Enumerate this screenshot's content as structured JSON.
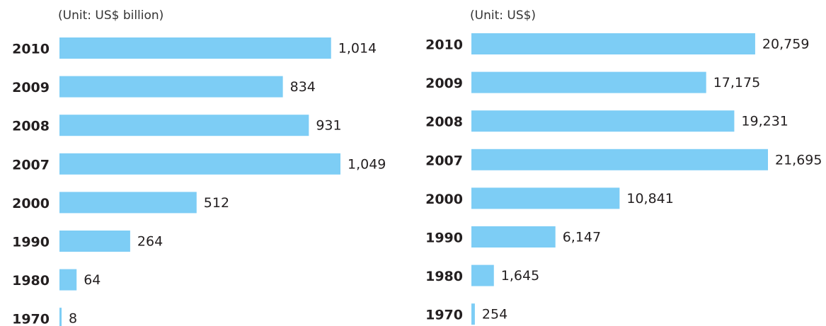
{
  "chart_data": [
    {
      "type": "bar",
      "orientation": "horizontal",
      "subtitle": "(Unit: US$ billion)",
      "color": "#7dcdf5",
      "categories": [
        "2010",
        "2009",
        "2008",
        "2007",
        "2000",
        "1990",
        "1980",
        "1970"
      ],
      "values": [
        1014,
        834,
        931,
        1049,
        512,
        264,
        64,
        8
      ],
      "value_labels": [
        "1,014",
        "834",
        "931",
        "1,049",
        "512",
        "264",
        "64",
        "8"
      ]
    },
    {
      "type": "bar",
      "orientation": "horizontal",
      "subtitle": "(Unit: US$)",
      "color": "#7dcdf5",
      "categories": [
        "2010",
        "2009",
        "2008",
        "2007",
        "2000",
        "1990",
        "1980",
        "1970"
      ],
      "values": [
        20759,
        17175,
        19231,
        21695,
        10841,
        6147,
        1645,
        254
      ],
      "value_labels": [
        "20,759",
        "17,175",
        "19,231",
        "21,695",
        "10,841",
        "6,147",
        "1,645",
        "254"
      ]
    }
  ]
}
